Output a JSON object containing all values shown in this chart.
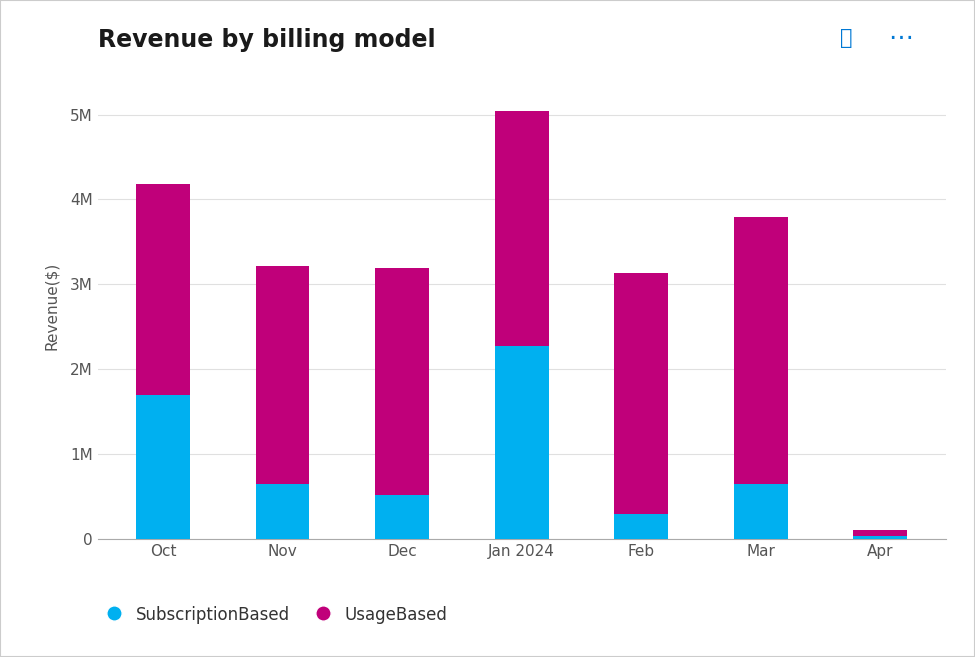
{
  "categories": [
    "Oct",
    "Nov",
    "Dec",
    "Jan 2024",
    "Feb",
    "Mar",
    "Apr"
  ],
  "subscription_based": [
    1700000,
    650000,
    520000,
    2270000,
    290000,
    640000,
    30000
  ],
  "usage_based": [
    2480000,
    2560000,
    2670000,
    2770000,
    2840000,
    3150000,
    75000
  ],
  "subscription_color": "#00B0F0",
  "usage_color": "#C0007A",
  "title": "Revenue by billing model",
  "ylabel": "Revenue($)",
  "ylim_max": 5500000,
  "yticks": [
    0,
    1000000,
    2000000,
    3000000,
    4000000,
    5000000
  ],
  "ytick_labels": [
    "0",
    "1M",
    "2M",
    "3M",
    "4M",
    "5M"
  ],
  "legend_subscription": "SubscriptionBased",
  "legend_usage": "UsageBased",
  "background_color": "#FFFFFF",
  "title_fontsize": 17,
  "axis_fontsize": 11,
  "tick_fontsize": 11,
  "bar_width": 0.45
}
